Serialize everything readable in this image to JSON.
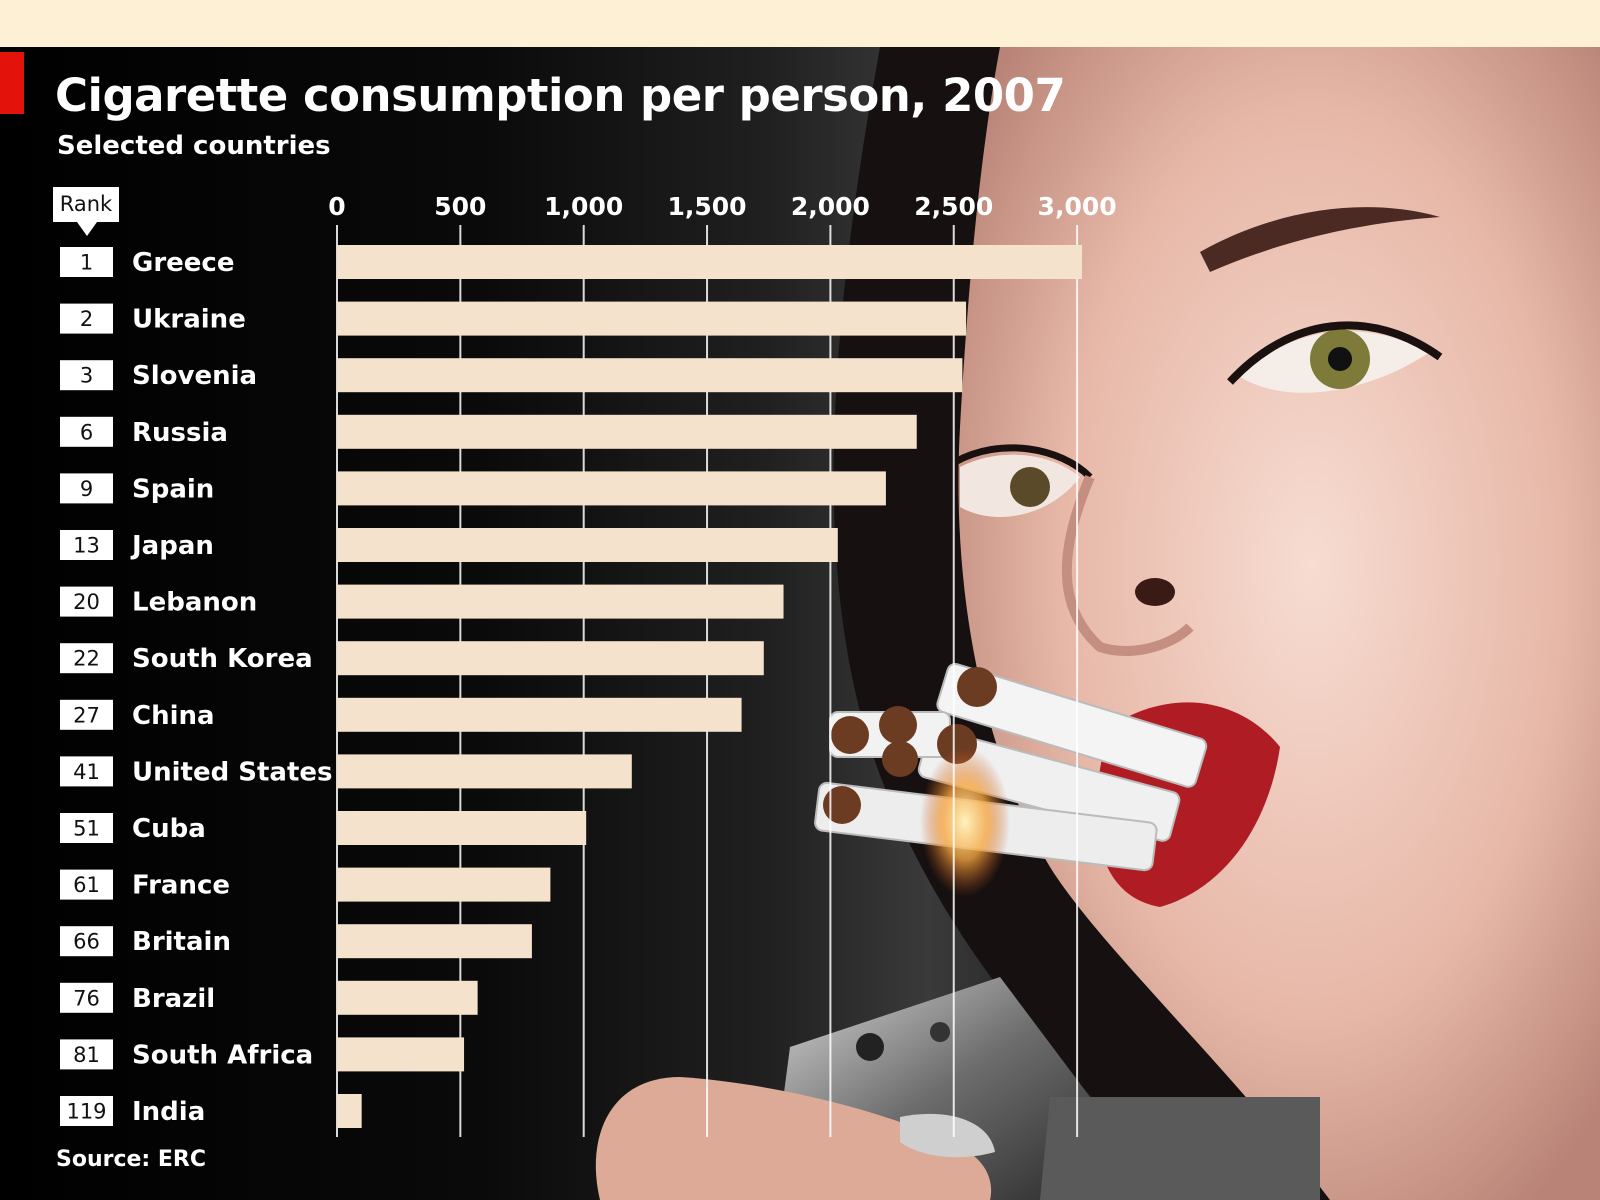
{
  "chart_data": {
    "type": "bar",
    "orientation": "horizontal",
    "title": "Cigarette consumption per person, 2007",
    "subtitle": "Selected countries",
    "rank_header": "Rank",
    "source": "Source: ERC",
    "xlim": [
      0,
      3000
    ],
    "xticks": [
      0,
      500,
      1000,
      1500,
      2000,
      2500,
      3000
    ],
    "xtick_labels": [
      "0",
      "500",
      "1,000",
      "1,500",
      "2,000",
      "2,500",
      "3,000"
    ],
    "grid": true,
    "categories": [
      "Greece",
      "Ukraine",
      "Slovenia",
      "Russia",
      "Spain",
      "Japan",
      "Lebanon",
      "South Korea",
      "China",
      "United States",
      "Cuba",
      "France",
      "Britain",
      "Brazil",
      "South Africa",
      "India"
    ],
    "ranks": [
      "1",
      "2",
      "3",
      "6",
      "9",
      "13",
      "20",
      "22",
      "27",
      "41",
      "51",
      "61",
      "66",
      "76",
      "81",
      "119"
    ],
    "values": [
      3020,
      2550,
      2535,
      2350,
      2225,
      2030,
      1810,
      1730,
      1640,
      1195,
      1010,
      865,
      790,
      570,
      515,
      100
    ],
    "bar_color": "#f5e2cc"
  }
}
